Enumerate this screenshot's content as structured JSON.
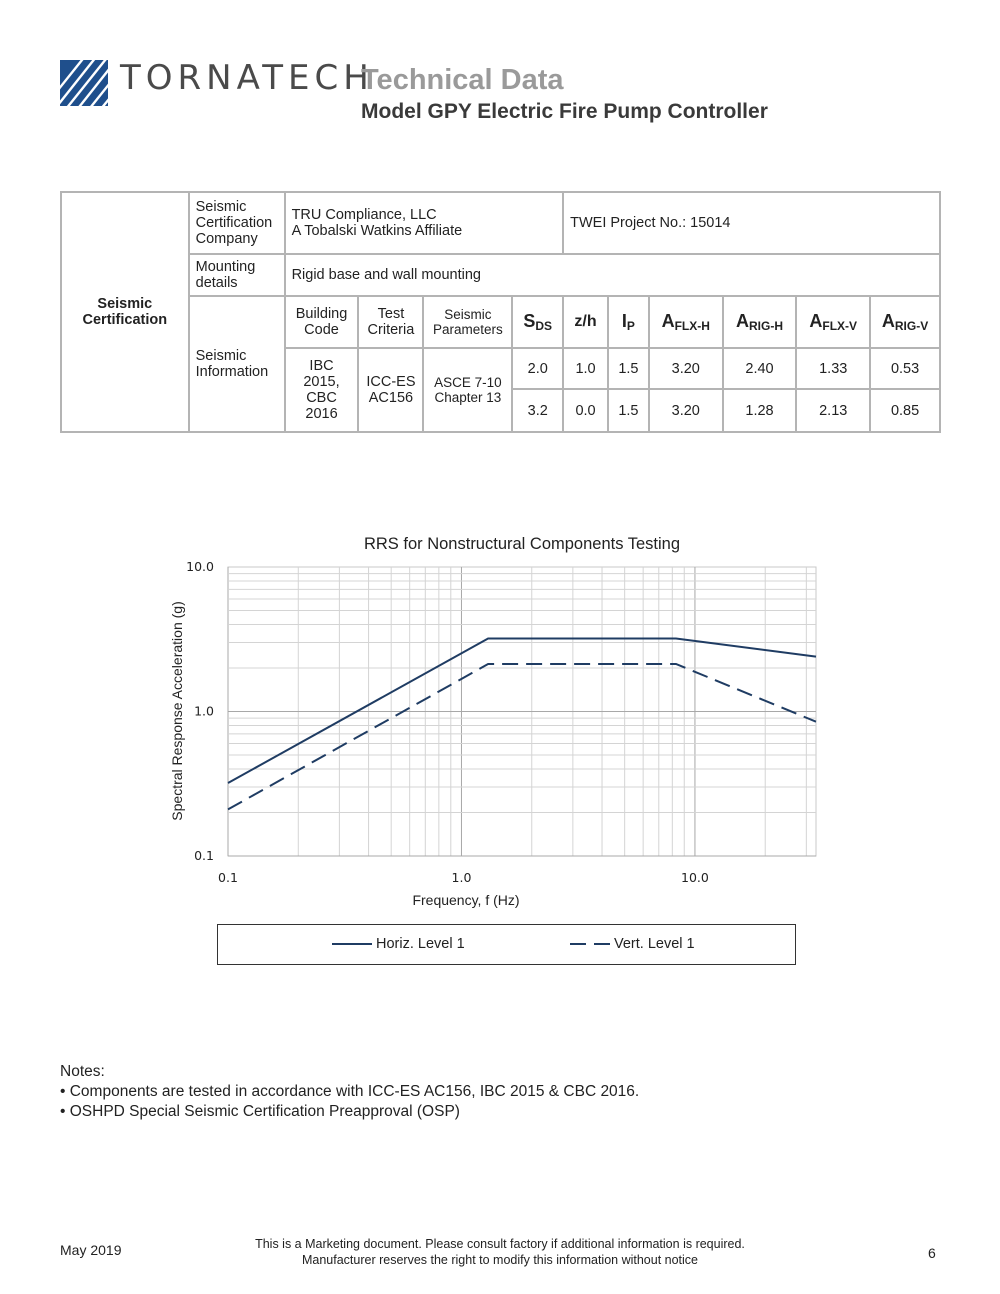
{
  "header": {
    "brand": "TORNATECH",
    "title": "Technical Data",
    "subtitle": "Model GPY Electric Fire Pump Controller"
  },
  "table": {
    "category": "Seismic Certification",
    "rows": {
      "company_label": "Seismic Certification Company",
      "company_line1": "TRU Compliance, LLC",
      "company_line2": "A Tobalski Watkins Affiliate",
      "project": "TWEI Project No.: 15014",
      "mounting_label": "Mounting details",
      "mounting_value": "Rigid base and wall mounting",
      "info_label": "Seismic Information"
    },
    "headers": {
      "building_code": "Building Code",
      "test_criteria": "Test Criteria",
      "seismic_params": "Seismic Parameters",
      "sds": "S",
      "sds_sub": "DS",
      "zh": "z/h",
      "ip": "I",
      "ip_sub": "P",
      "aflxh": "A",
      "aflxh_sub": "FLX-H",
      "arigh": "A",
      "arigh_sub": "RIG-H",
      "aflxv": "A",
      "aflxv_sub": "FLX-V",
      "arigv": "A",
      "arigv_sub": "RIG-V"
    },
    "building_code_value": "IBC 2015, CBC 2016",
    "test_criteria_value": "ICC-ES AC156",
    "seismic_params_value": "ASCE 7-10 Chapter 13",
    "data_rows": [
      [
        "2.0",
        "1.0",
        "1.5",
        "3.20",
        "2.40",
        "1.33",
        "0.53"
      ],
      [
        "3.2",
        "0.0",
        "1.5",
        "3.20",
        "1.28",
        "2.13",
        "0.85"
      ]
    ]
  },
  "chart_data": {
    "type": "line",
    "title": "RRS for Nonstructural Components Testing",
    "xlabel": "Frequency, f (Hz)",
    "ylabel": "Spectral Response Acceleration (g)",
    "xscale": "log",
    "yscale": "log",
    "xlim": [
      0.1,
      33
    ],
    "ylim": [
      0.1,
      10.0
    ],
    "xticks": [
      "0.1",
      "1.0",
      "10.0"
    ],
    "yticks": [
      "0.1",
      "1.0",
      "10.0"
    ],
    "grid": true,
    "legend_position": "bottom",
    "series": [
      {
        "name": "Horiz. Level 1",
        "style": "solid",
        "color": "#1f3c63",
        "points": [
          [
            0.1,
            0.32
          ],
          [
            1.3,
            3.2
          ],
          [
            8.3,
            3.2
          ],
          [
            33,
            2.4
          ]
        ]
      },
      {
        "name": "Vert. Level 1",
        "style": "dashed",
        "color": "#1f3c63",
        "points": [
          [
            0.1,
            0.21
          ],
          [
            1.3,
            2.13
          ],
          [
            8.3,
            2.13
          ],
          [
            33,
            0.85
          ]
        ]
      }
    ]
  },
  "notes": {
    "heading": "Notes:",
    "items": [
      "• Components are tested in accordance with ICC-ES AC156, IBC 2015 & CBC 2016.",
      "• OSHPD Special Seismic Certification Preapproval (OSP)"
    ]
  },
  "footer": {
    "date": "May 2019",
    "line1": "This is a Marketing document. Please consult factory if additional information is required.",
    "line2": "Manufacturer reserves the right to modify this information without notice",
    "page": "6"
  }
}
